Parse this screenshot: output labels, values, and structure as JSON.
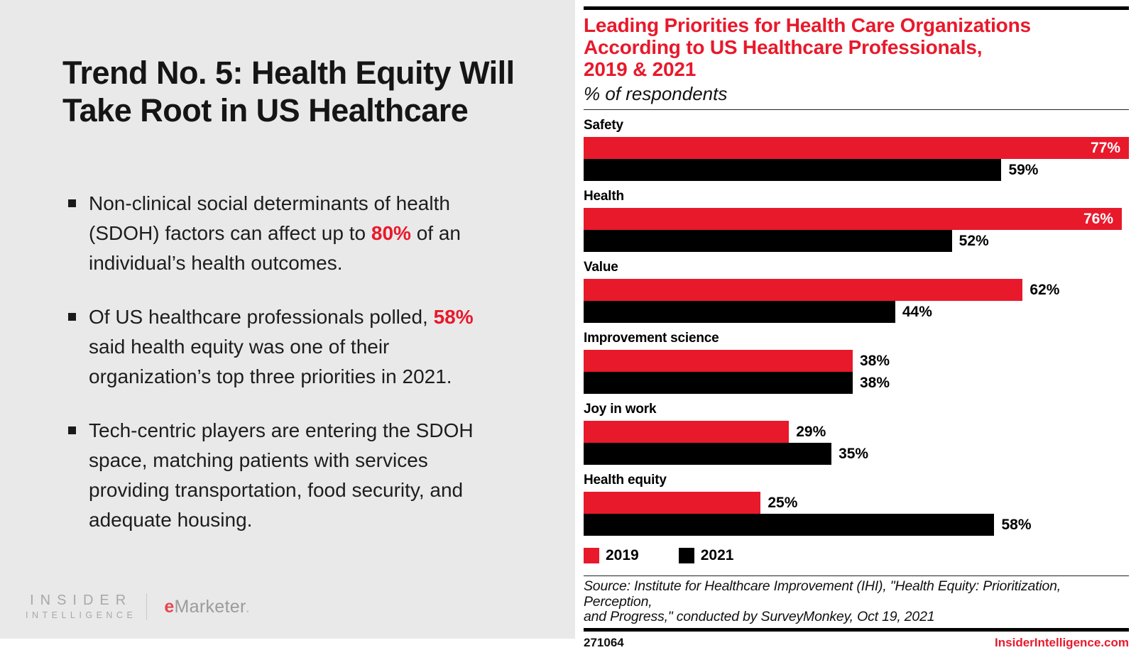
{
  "left_panel": {
    "title": "Trend No. 5: Health Equity Will Take Root in US Healthcare",
    "bullets": [
      {
        "segments": [
          {
            "text": "Non-clinical social determinants of health\n(SDOH) factors can affect up to ",
            "red": false
          },
          {
            "text": "80%",
            "red": true
          },
          {
            "text": " of an\nindividual’s health outcomes.",
            "red": false
          }
        ]
      },
      {
        "segments": [
          {
            "text": "Of US healthcare professionals polled, ",
            "red": false
          },
          {
            "text": "58%",
            "red": true
          },
          {
            "text": "\nsaid health equity was one of their\norganization’s top three priorities in 2021.",
            "red": false
          }
        ]
      },
      {
        "segments": [
          {
            "text": "Tech-centric players are entering the SDOH\nspace, matching patients with services\nproviding transportation, food security, and\nadequate housing.",
            "red": false
          }
        ]
      }
    ],
    "logo": {
      "insider_line1": "INSIDER",
      "insider_line2": "INTELLIGENCE",
      "emarketer_e": "e",
      "emarketer_rest": "Marketer",
      "emarketer_dot": "."
    }
  },
  "chart_data": {
    "type": "bar",
    "orientation": "horizontal",
    "title_lines": [
      "Leading Priorities for Health Care Organizations",
      "According to US Healthcare Professionals,",
      "2019 & 2021"
    ],
    "subtitle": "% of respondents",
    "categories": [
      "Safety",
      "Health",
      "Value",
      "Improvement science",
      "Joy in work",
      "Health equity"
    ],
    "series": [
      {
        "name": "2019",
        "color": "#e8192b",
        "values": [
          77,
          76,
          62,
          38,
          29,
          25
        ]
      },
      {
        "name": "2021",
        "color": "#000000",
        "values": [
          59,
          52,
          44,
          38,
          35,
          58
        ]
      }
    ],
    "value_suffix": "%",
    "xlim": [
      0,
      77
    ],
    "grid": false,
    "legend_position": "bottom-left"
  },
  "footer": {
    "source_text": "Source: Institute for Healthcare Improvement (IHI), \"Health Equity: Prioritization, Perception,\nand Progress,\" conducted by SurveyMonkey, Oct 19, 2021",
    "chart_id": "271064",
    "site": "InsiderIntelligence.com"
  },
  "colors": {
    "red": "#e8192b",
    "black": "#000000",
    "panel_gray": "#e9e9e9",
    "logo_gray": "#a8a8a8"
  }
}
